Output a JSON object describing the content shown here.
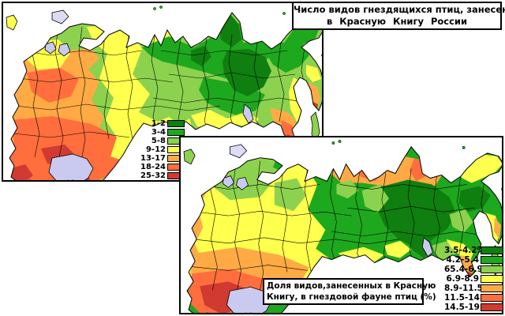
{
  "title_box": {
    "line1": "Число видов гнездящихся птиц, занесеных",
    "line2": "в Красную Книгу России"
  },
  "caption_box": {
    "line1": "Доля видов,занесенных в Красную",
    "line2": "Книгу, в гнездовой фауне птиц (%)"
  },
  "palette": {
    "dark_green": "#0F7F0F",
    "green": "#1EA81E",
    "light_green": "#8CD24E",
    "yellow": "#FFFF4D",
    "light_orange": "#FFAA45",
    "orange": "#FF6E3C",
    "red": "#D03A30",
    "water": "#CACAF0",
    "island": "#DCDCF4",
    "outline": "#000000"
  },
  "map1_legend": [
    {
      "label": "1-2",
      "color_key": "dark_green"
    },
    {
      "label": "3-4",
      "color_key": "green"
    },
    {
      "label": "5-8",
      "color_key": "light_green"
    },
    {
      "label": "9-12",
      "color_key": "yellow"
    },
    {
      "label": "13-17",
      "color_key": "light_orange"
    },
    {
      "label": "18-24",
      "color_key": "orange"
    },
    {
      "label": "25-32",
      "color_key": "red"
    }
  ],
  "map2_legend": [
    {
      "label": "3.5-4.2%",
      "color_key": "dark_green"
    },
    {
      "label": "4.2-5.4",
      "color_key": "green"
    },
    {
      "label": "65.4-6.9",
      "color_key": "light_green"
    },
    {
      "label": "6.9-8.9",
      "color_key": "yellow"
    },
    {
      "label": "8.9-11.5",
      "color_key": "light_orange"
    },
    {
      "label": "11.5-14.5",
      "color_key": "orange"
    },
    {
      "label": "14.5-19",
      "color_key": "red"
    }
  ],
  "chart_data": [
    {
      "type": "choropleth-map",
      "title": "Число видов гнездящихся птиц, занесеных в Красную Книгу России",
      "unit": "species count",
      "bins": [
        "1-2",
        "3-4",
        "5-8",
        "9-12",
        "13-17",
        "18-24",
        "25-32"
      ]
    },
    {
      "type": "choropleth-map",
      "title": "Доля видов,занесенных в Красную Книгу, в гнездовой фауне птиц (%)",
      "unit": "percent",
      "bins": [
        "3.5-4.2%",
        "4.2-5.4",
        "65.4-6.9",
        "6.9-8.9",
        "8.9-11.5",
        "11.5-14.5",
        "14.5-19"
      ]
    }
  ]
}
